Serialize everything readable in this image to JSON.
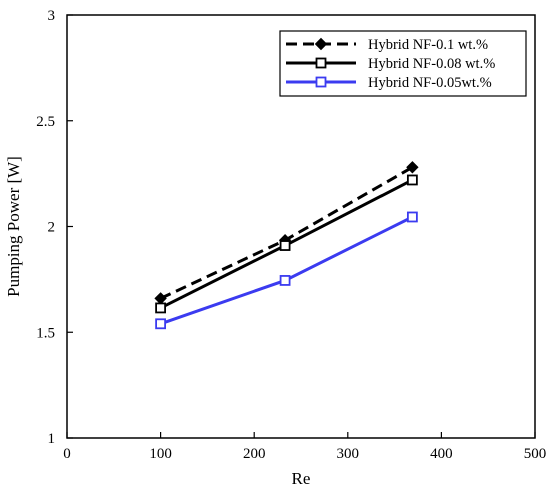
{
  "chart_data": {
    "type": "line",
    "title": "",
    "xlabel": "Re",
    "ylabel": "Pumping Power [W]",
    "xlim": [
      0,
      500
    ],
    "ylim": [
      1,
      3
    ],
    "xticks": [
      0,
      100,
      200,
      300,
      400,
      500
    ],
    "yticks": [
      1,
      1.5,
      2,
      2.5,
      3
    ],
    "xtick_labels": [
      "0",
      "100",
      "200",
      "300",
      "400",
      "500"
    ],
    "ytick_labels": [
      "1",
      "1.5",
      "2",
      "2.5",
      "3"
    ],
    "grid": false,
    "legend_position": "top-right",
    "series": [
      {
        "name": "Hybrid NF-0.1 wt.%",
        "x": [
          100,
          233,
          369
        ],
        "y": [
          1.66,
          1.935,
          2.28
        ],
        "color": "#000000",
        "line_style": "dashed",
        "marker": "filled-diamond"
      },
      {
        "name": "Hybrid NF-0.08 wt.%",
        "x": [
          100,
          233,
          369
        ],
        "y": [
          1.615,
          1.91,
          2.22
        ],
        "color": "#000000",
        "line_style": "solid",
        "marker": "open-square"
      },
      {
        "name": "Hybrid NF-0.05wt.%",
        "x": [
          100,
          233,
          369
        ],
        "y": [
          1.54,
          1.745,
          2.045
        ],
        "color": "#3b3bf0",
        "line_style": "solid",
        "marker": "open-square"
      }
    ]
  }
}
